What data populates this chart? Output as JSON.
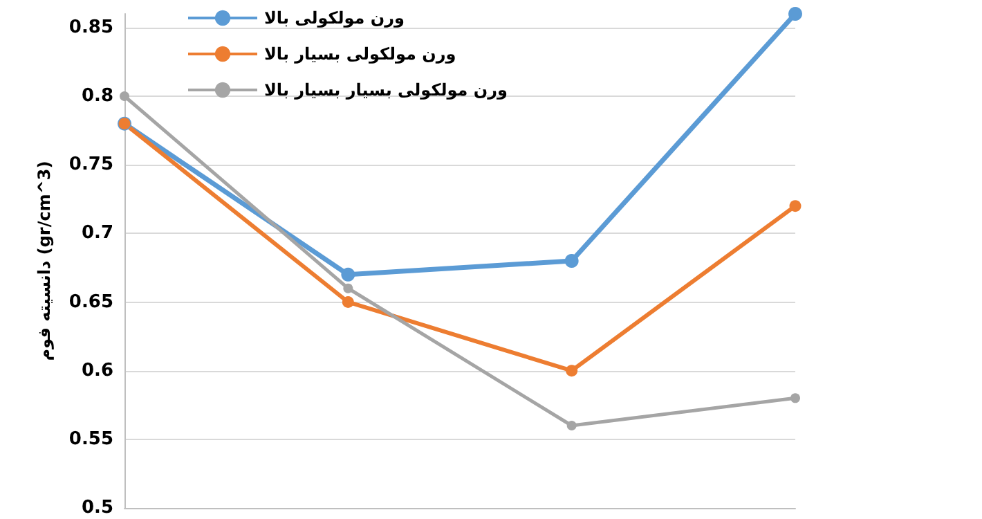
{
  "chart_data": {
    "type": "line",
    "ylabel": "دانسیته فوم (gr/cm^3)",
    "categories": [
      null,
      null,
      null,
      null
    ],
    "series": [
      {
        "name": "ورن مولکولی بالا",
        "color": "#5b9bd5",
        "values": [
          0.78,
          0.67,
          0.68,
          0.86
        ]
      },
      {
        "name": "ورن مولکولی بسیار بالا",
        "color": "#ed7d31",
        "values": [
          0.78,
          0.65,
          0.6,
          0.72
        ]
      },
      {
        "name": "ورن مولکولی بسیار بسیار بالا",
        "color": "#a5a5a5",
        "values": [
          0.8,
          0.66,
          0.56,
          0.58
        ]
      }
    ],
    "ylim": [
      0.5,
      0.86
    ],
    "yticks": [
      0.5,
      0.55,
      0.6,
      0.65,
      0.7,
      0.75,
      0.8,
      0.85
    ],
    "grid": "y",
    "legend": "top",
    "marker": "circle",
    "line_style": "solid"
  }
}
